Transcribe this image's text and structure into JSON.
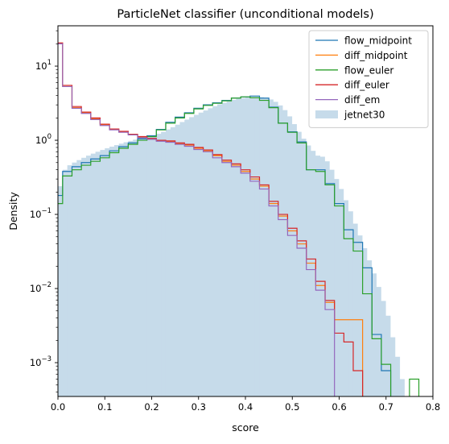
{
  "chart_data": {
    "type": "histogram",
    "title": "ParticleNet classifier (unconditional models)",
    "xlabel": "score",
    "ylabel": "Density",
    "xlim": [
      0.0,
      0.8
    ],
    "ylim": [
      0.00035,
      35
    ],
    "yscale": "log",
    "bin_width": 0.02,
    "x_ticks": [
      {
        "value": 0.0,
        "label": "0.0"
      },
      {
        "value": 0.1,
        "label": "0.1"
      },
      {
        "value": 0.2,
        "label": "0.2"
      },
      {
        "value": 0.3,
        "label": "0.3"
      },
      {
        "value": 0.4,
        "label": "0.4"
      },
      {
        "value": 0.5,
        "label": "0.5"
      },
      {
        "value": 0.6,
        "label": "0.6"
      },
      {
        "value": 0.7,
        "label": "0.7"
      },
      {
        "value": 0.8,
        "label": "0.8"
      }
    ],
    "y_ticks": [
      {
        "value": 0.001,
        "base": "10",
        "exp": "−3"
      },
      {
        "value": 0.01,
        "base": "10",
        "exp": "−2"
      },
      {
        "value": 0.1,
        "base": "10",
        "exp": "−1"
      },
      {
        "value": 1,
        "base": "10",
        "exp": "0"
      },
      {
        "value": 10,
        "base": "10",
        "exp": "1"
      }
    ],
    "legend_position": "upper right",
    "reference": {
      "name": "jetnet30",
      "color": "#c6dbea",
      "style": "filled",
      "bins": [
        [
          0.0,
          0.24
        ],
        [
          0.01,
          0.4
        ],
        [
          0.02,
          0.46
        ],
        [
          0.03,
          0.5
        ],
        [
          0.04,
          0.54
        ],
        [
          0.05,
          0.58
        ],
        [
          0.06,
          0.62
        ],
        [
          0.07,
          0.66
        ],
        [
          0.08,
          0.7
        ],
        [
          0.09,
          0.74
        ],
        [
          0.1,
          0.78
        ],
        [
          0.11,
          0.82
        ],
        [
          0.12,
          0.86
        ],
        [
          0.13,
          0.9
        ],
        [
          0.14,
          0.94
        ],
        [
          0.15,
          0.98
        ],
        [
          0.16,
          1.02
        ],
        [
          0.17,
          1.06
        ],
        [
          0.18,
          1.1
        ],
        [
          0.19,
          1.12
        ],
        [
          0.2,
          1.16
        ],
        [
          0.21,
          1.22
        ],
        [
          0.22,
          1.3
        ],
        [
          0.23,
          1.4
        ],
        [
          0.24,
          1.5
        ],
        [
          0.25,
          1.62
        ],
        [
          0.26,
          1.76
        ],
        [
          0.27,
          1.9
        ],
        [
          0.28,
          2.05
        ],
        [
          0.29,
          2.2
        ],
        [
          0.3,
          2.36
        ],
        [
          0.31,
          2.52
        ],
        [
          0.32,
          2.7
        ],
        [
          0.33,
          2.88
        ],
        [
          0.34,
          3.05
        ],
        [
          0.35,
          3.2
        ],
        [
          0.36,
          3.35
        ],
        [
          0.37,
          3.5
        ],
        [
          0.38,
          3.62
        ],
        [
          0.39,
          3.72
        ],
        [
          0.4,
          3.8
        ],
        [
          0.41,
          3.85
        ],
        [
          0.42,
          3.8
        ],
        [
          0.43,
          3.7
        ],
        [
          0.44,
          3.55
        ],
        [
          0.45,
          3.3
        ],
        [
          0.46,
          2.95
        ],
        [
          0.47,
          2.55
        ],
        [
          0.48,
          2.1
        ],
        [
          0.49,
          1.65
        ],
        [
          0.5,
          1.3
        ],
        [
          0.51,
          1.05
        ],
        [
          0.52,
          0.85
        ],
        [
          0.53,
          0.72
        ],
        [
          0.54,
          0.62
        ],
        [
          0.55,
          0.6
        ],
        [
          0.56,
          0.52
        ],
        [
          0.57,
          0.4
        ],
        [
          0.58,
          0.3
        ],
        [
          0.59,
          0.22
        ],
        [
          0.6,
          0.155
        ],
        [
          0.61,
          0.11
        ],
        [
          0.62,
          0.075
        ],
        [
          0.63,
          0.052
        ],
        [
          0.64,
          0.035
        ],
        [
          0.65,
          0.024
        ],
        [
          0.66,
          0.016
        ],
        [
          0.67,
          0.0105
        ],
        [
          0.68,
          0.0068
        ],
        [
          0.69,
          0.0043
        ],
        [
          0.7,
          0.0022
        ],
        [
          0.71,
          0.0012
        ],
        [
          0.72,
          0.0006
        ]
      ]
    },
    "series": [
      {
        "name": "flow_midpoint",
        "color": "#1f77b4",
        "bins": [
          [
            0.0,
            0.18
          ],
          [
            0.01,
            0.38
          ],
          [
            0.03,
            0.44
          ],
          [
            0.05,
            0.5
          ],
          [
            0.07,
            0.56
          ],
          [
            0.09,
            0.62
          ],
          [
            0.11,
            0.72
          ],
          [
            0.13,
            0.82
          ],
          [
            0.15,
            0.92
          ],
          [
            0.17,
            1.05
          ],
          [
            0.19,
            1.15
          ],
          [
            0.21,
            1.4
          ],
          [
            0.23,
            1.75
          ],
          [
            0.25,
            2.05
          ],
          [
            0.27,
            2.35
          ],
          [
            0.29,
            2.7
          ],
          [
            0.31,
            3.0
          ],
          [
            0.33,
            3.2
          ],
          [
            0.35,
            3.45
          ],
          [
            0.37,
            3.72
          ],
          [
            0.39,
            3.85
          ],
          [
            0.41,
            3.95
          ],
          [
            0.43,
            3.7
          ],
          [
            0.45,
            2.8
          ],
          [
            0.47,
            1.7
          ],
          [
            0.49,
            1.3
          ],
          [
            0.51,
            0.95
          ],
          [
            0.53,
            0.4
          ],
          [
            0.55,
            0.4
          ],
          [
            0.57,
            0.26
          ],
          [
            0.59,
            0.14
          ],
          [
            0.61,
            0.062
          ],
          [
            0.63,
            0.042
          ],
          [
            0.65,
            0.019
          ],
          [
            0.67,
            0.0024
          ],
          [
            0.69,
            0.00078
          ],
          [
            0.71,
            null
          ]
        ]
      },
      {
        "name": "diff_midpoint",
        "color": "#ff7f0e",
        "bins": [
          [
            0.0,
            20.5
          ],
          [
            0.01,
            5.3
          ],
          [
            0.03,
            2.75
          ],
          [
            0.05,
            2.35
          ],
          [
            0.07,
            1.95
          ],
          [
            0.09,
            1.62
          ],
          [
            0.11,
            1.4
          ],
          [
            0.13,
            1.3
          ],
          [
            0.15,
            1.2
          ],
          [
            0.17,
            1.1
          ],
          [
            0.19,
            1.05
          ],
          [
            0.21,
            0.98
          ],
          [
            0.23,
            0.96
          ],
          [
            0.25,
            0.9
          ],
          [
            0.27,
            0.86
          ],
          [
            0.29,
            0.78
          ],
          [
            0.31,
            0.72
          ],
          [
            0.33,
            0.62
          ],
          [
            0.35,
            0.52
          ],
          [
            0.37,
            0.46
          ],
          [
            0.39,
            0.38
          ],
          [
            0.41,
            0.3
          ],
          [
            0.43,
            0.24
          ],
          [
            0.45,
            0.14
          ],
          [
            0.47,
            0.095
          ],
          [
            0.49,
            0.06
          ],
          [
            0.51,
            0.04
          ],
          [
            0.53,
            0.022
          ],
          [
            0.55,
            0.011
          ],
          [
            0.57,
            0.0065
          ],
          [
            0.59,
            0.0038
          ],
          [
            0.61,
            0.0038
          ],
          [
            0.63,
            0.0038
          ],
          [
            0.65,
            null
          ]
        ]
      },
      {
        "name": "flow_euler",
        "color": "#2ca02c",
        "bins": [
          [
            0.0,
            0.14
          ],
          [
            0.01,
            0.33
          ],
          [
            0.03,
            0.4
          ],
          [
            0.05,
            0.46
          ],
          [
            0.07,
            0.52
          ],
          [
            0.09,
            0.58
          ],
          [
            0.11,
            0.68
          ],
          [
            0.13,
            0.78
          ],
          [
            0.15,
            0.88
          ],
          [
            0.17,
            1.0
          ],
          [
            0.19,
            1.12
          ],
          [
            0.21,
            1.38
          ],
          [
            0.23,
            1.7
          ],
          [
            0.25,
            2.0
          ],
          [
            0.27,
            2.3
          ],
          [
            0.29,
            2.65
          ],
          [
            0.31,
            2.95
          ],
          [
            0.33,
            3.15
          ],
          [
            0.35,
            3.4
          ],
          [
            0.37,
            3.7
          ],
          [
            0.39,
            3.85
          ],
          [
            0.41,
            3.75
          ],
          [
            0.43,
            3.45
          ],
          [
            0.45,
            2.75
          ],
          [
            0.47,
            1.7
          ],
          [
            0.49,
            1.28
          ],
          [
            0.51,
            0.92
          ],
          [
            0.53,
            0.4
          ],
          [
            0.55,
            0.38
          ],
          [
            0.57,
            0.25
          ],
          [
            0.59,
            0.13
          ],
          [
            0.61,
            0.047
          ],
          [
            0.63,
            0.032
          ],
          [
            0.65,
            0.0085
          ],
          [
            0.67,
            0.0021
          ],
          [
            0.69,
            0.00095
          ],
          [
            0.71,
            null
          ],
          [
            0.75,
            0.0006
          ],
          [
            0.77,
            null
          ]
        ]
      },
      {
        "name": "diff_euler",
        "color": "#d62728",
        "bins": [
          [
            0.0,
            20.5
          ],
          [
            0.01,
            5.5
          ],
          [
            0.03,
            2.85
          ],
          [
            0.05,
            2.4
          ],
          [
            0.07,
            2.0
          ],
          [
            0.09,
            1.65
          ],
          [
            0.11,
            1.42
          ],
          [
            0.13,
            1.32
          ],
          [
            0.15,
            1.2
          ],
          [
            0.17,
            1.12
          ],
          [
            0.19,
            1.06
          ],
          [
            0.21,
            1.0
          ],
          [
            0.23,
            0.98
          ],
          [
            0.25,
            0.92
          ],
          [
            0.27,
            0.88
          ],
          [
            0.29,
            0.8
          ],
          [
            0.31,
            0.74
          ],
          [
            0.33,
            0.64
          ],
          [
            0.35,
            0.54
          ],
          [
            0.37,
            0.48
          ],
          [
            0.39,
            0.4
          ],
          [
            0.41,
            0.32
          ],
          [
            0.43,
            0.25
          ],
          [
            0.45,
            0.15
          ],
          [
            0.47,
            0.1
          ],
          [
            0.49,
            0.065
          ],
          [
            0.51,
            0.044
          ],
          [
            0.53,
            0.025
          ],
          [
            0.55,
            0.0125
          ],
          [
            0.57,
            0.0069
          ],
          [
            0.59,
            0.0025
          ],
          [
            0.61,
            0.0019
          ],
          [
            0.63,
            0.00078
          ],
          [
            0.65,
            null
          ]
        ]
      },
      {
        "name": "diff_em",
        "color": "#9467bd",
        "bins": [
          [
            0.0,
            20.0
          ],
          [
            0.01,
            5.3
          ],
          [
            0.03,
            2.7
          ],
          [
            0.05,
            2.3
          ],
          [
            0.07,
            1.9
          ],
          [
            0.09,
            1.58
          ],
          [
            0.11,
            1.38
          ],
          [
            0.13,
            1.28
          ],
          [
            0.15,
            1.18
          ],
          [
            0.17,
            1.08
          ],
          [
            0.19,
            1.03
          ],
          [
            0.21,
            0.97
          ],
          [
            0.23,
            0.94
          ],
          [
            0.25,
            0.88
          ],
          [
            0.27,
            0.83
          ],
          [
            0.29,
            0.75
          ],
          [
            0.31,
            0.7
          ],
          [
            0.33,
            0.58
          ],
          [
            0.35,
            0.5
          ],
          [
            0.37,
            0.44
          ],
          [
            0.39,
            0.36
          ],
          [
            0.41,
            0.28
          ],
          [
            0.43,
            0.22
          ],
          [
            0.45,
            0.13
          ],
          [
            0.47,
            0.085
          ],
          [
            0.49,
            0.052
          ],
          [
            0.51,
            0.035
          ],
          [
            0.53,
            0.018
          ],
          [
            0.55,
            0.0095
          ],
          [
            0.57,
            0.0052
          ],
          [
            0.59,
            null
          ]
        ]
      }
    ]
  }
}
